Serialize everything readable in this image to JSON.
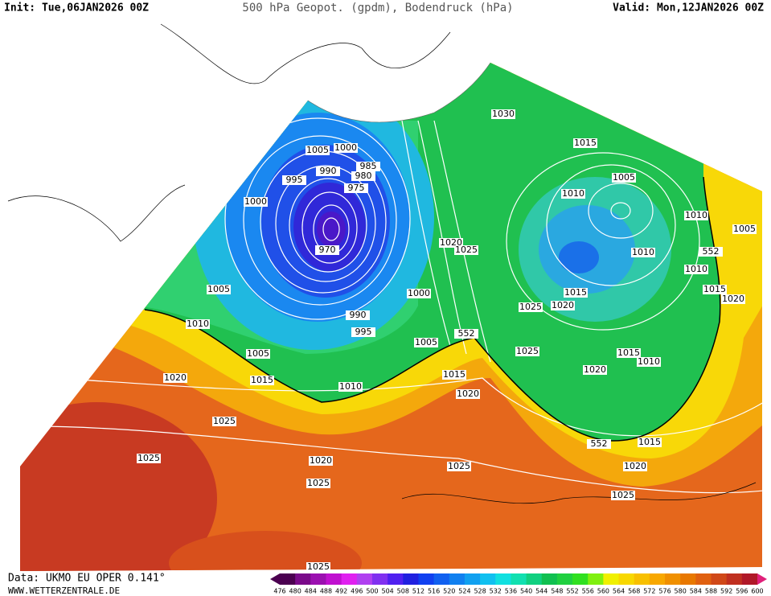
{
  "header": {
    "init": "Init: Tue,06JAN2026 00Z",
    "title": "500 hPa Geopot. (gpdm), Bodendruck (hPa)",
    "valid": "Valid: Mon,12JAN2026 00Z"
  },
  "isobar_labels": [
    1030,
    1015,
    1005,
    1000,
    985,
    990,
    980,
    995,
    975,
    1010,
    1005,
    1000,
    1010,
    1005,
    1020,
    1025,
    970,
    552,
    1010,
    1010,
    1005,
    1000,
    1015,
    1015,
    1020,
    1025,
    1020,
    990,
    1010,
    995,
    552,
    1005,
    1005,
    1025,
    1015,
    1010,
    1020,
    1015,
    1020,
    1015,
    1010,
    1020,
    1025,
    552,
    1015,
    1020,
    1025,
    1025,
    1020,
    1025,
    1025,
    1025
  ],
  "footer": {
    "data": "Data: UKMO EU OPER 0.141°",
    "site": "WWW.WETTERZENTRALE.DE"
  },
  "colorbar": {
    "labels": [
      476,
      480,
      484,
      488,
      492,
      496,
      500,
      504,
      508,
      512,
      516,
      520,
      524,
      528,
      532,
      536,
      540,
      544,
      548,
      552,
      556,
      560,
      564,
      568,
      572,
      576,
      580,
      584,
      588,
      592,
      596,
      600
    ],
    "colors": [
      "#4b0050",
      "#7a0a8a",
      "#9b10b0",
      "#c010d0",
      "#e020f0",
      "#b040f0",
      "#8030f0",
      "#5020f0",
      "#2020e0",
      "#1040f0",
      "#1060f0",
      "#1080f0",
      "#10a0f0",
      "#10c0f0",
      "#10e0e0",
      "#10e0b0",
      "#10d080",
      "#10c050",
      "#20d040",
      "#30e020",
      "#80f010",
      "#f0f000",
      "#f8d800",
      "#f8c000",
      "#f8a800",
      "#f09000",
      "#e87800",
      "#e06010",
      "#d04818",
      "#c03020",
      "#b01828"
    ]
  }
}
